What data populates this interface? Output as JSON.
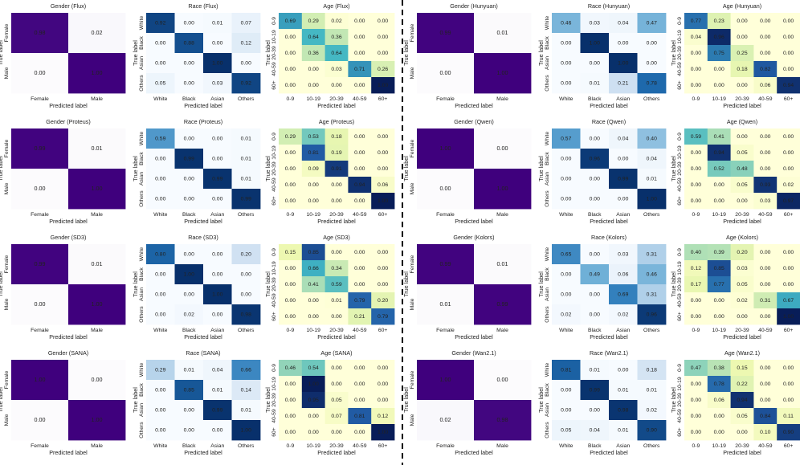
{
  "common": {
    "xlabel": "Predicted label",
    "ylabel": "True label",
    "gender_labels": [
      "Female",
      "Male"
    ],
    "race_labels": [
      "White",
      "Black",
      "Asian",
      "Others"
    ],
    "age_labels": [
      "0-9",
      "10-19",
      "20-39",
      "40-59",
      "60+"
    ]
  },
  "colors": {
    "gender": "purples",
    "race": "blues",
    "age": "yellow-green-blue"
  },
  "chart_data": [
    {
      "type": "heatmap",
      "title": "Gender (Flux)",
      "rows": [
        "Female",
        "Male"
      ],
      "cols": [
        "Female",
        "Male"
      ],
      "values": [
        [
          0.98,
          0.02
        ],
        [
          0.0,
          1.0
        ]
      ]
    },
    {
      "type": "heatmap",
      "title": "Race (Flux)",
      "rows": [
        "White",
        "Black",
        "Asian",
        "Others"
      ],
      "cols": [
        "White",
        "Black",
        "Asian",
        "Others"
      ],
      "values": [
        [
          0.92,
          0.0,
          0.01,
          0.07
        ],
        [
          0.0,
          0.88,
          0.0,
          0.12
        ],
        [
          0.0,
          0.0,
          1.0,
          0.0
        ],
        [
          0.05,
          0.0,
          0.03,
          0.92
        ]
      ]
    },
    {
      "type": "heatmap",
      "title": "Age (Flux)",
      "rows": [
        "0-9",
        "10-19",
        "20-39",
        "40-59",
        "60+"
      ],
      "cols": [
        "0-9",
        "10-19",
        "20-39",
        "40-59",
        "60+"
      ],
      "values": [
        [
          0.69,
          0.29,
          0.02,
          0.0,
          0.0
        ],
        [
          0.0,
          0.64,
          0.36,
          0.0,
          0.0
        ],
        [
          0.0,
          0.36,
          0.64,
          0.0,
          0.0
        ],
        [
          0.0,
          0.0,
          0.03,
          0.71,
          0.26
        ],
        [
          0.0,
          0.0,
          0.0,
          0.0,
          1.0
        ]
      ]
    },
    {
      "type": "heatmap",
      "title": "Gender (Hunyuan)",
      "rows": [
        "Female",
        "Male"
      ],
      "cols": [
        "Female",
        "Male"
      ],
      "values": [
        [
          0.99,
          0.01
        ],
        [
          0.0,
          1.0
        ]
      ]
    },
    {
      "type": "heatmap",
      "title": "Race (Hunyuan)",
      "rows": [
        "White",
        "Black",
        "Asian",
        "Others"
      ],
      "cols": [
        "White",
        "Black",
        "Asian",
        "Others"
      ],
      "values": [
        [
          0.46,
          0.03,
          0.04,
          0.47
        ],
        [
          0.0,
          1.0,
          0.0,
          0.0
        ],
        [
          0.0,
          0.0,
          1.0,
          0.0
        ],
        [
          0.0,
          0.01,
          0.21,
          0.78
        ]
      ]
    },
    {
      "type": "heatmap",
      "title": "Age (Hunyuan)",
      "rows": [
        "0-9",
        "10-19",
        "20-39",
        "40-59",
        "60+"
      ],
      "cols": [
        "0-9",
        "10-19",
        "20-39",
        "40-59",
        "60+"
      ],
      "values": [
        [
          0.77,
          0.23,
          0.0,
          0.0,
          0.0
        ],
        [
          0.04,
          0.96,
          0.0,
          0.0,
          0.0
        ],
        [
          0.0,
          0.75,
          0.25,
          0.0,
          0.0
        ],
        [
          0.0,
          0.0,
          0.18,
          0.82,
          0.0
        ],
        [
          0.0,
          0.0,
          0.0,
          0.06,
          0.94
        ]
      ]
    },
    {
      "type": "heatmap",
      "title": "Gender (Proteus)",
      "rows": [
        "Female",
        "Male"
      ],
      "cols": [
        "Female",
        "Male"
      ],
      "values": [
        [
          0.99,
          0.01
        ],
        [
          0.0,
          1.0
        ]
      ]
    },
    {
      "type": "heatmap",
      "title": "Race (Proteus)",
      "rows": [
        "White",
        "Black",
        "Asian",
        "Others"
      ],
      "cols": [
        "White",
        "Black",
        "Asian",
        "Others"
      ],
      "values": [
        [
          0.59,
          0.0,
          0.0,
          0.01
        ],
        [
          0.0,
          0.99,
          0.0,
          0.01
        ],
        [
          0.0,
          0.0,
          0.99,
          0.01
        ],
        [
          0.0,
          0.0,
          0.0,
          0.99
        ]
      ]
    },
    {
      "type": "heatmap",
      "title": "Age (Proteus)",
      "rows": [
        "0-9",
        "10-19",
        "20-39",
        "40-59",
        "60+"
      ],
      "cols": [
        "0-9",
        "10-19",
        "20-39",
        "40-59",
        "60+"
      ],
      "values": [
        [
          0.29,
          0.53,
          0.18,
          0.0,
          0.0
        ],
        [
          0.0,
          0.81,
          0.19,
          0.0,
          0.0
        ],
        [
          0.0,
          0.09,
          0.91,
          0.0,
          0.0
        ],
        [
          0.0,
          0.0,
          0.0,
          0.94,
          0.06
        ],
        [
          0.0,
          0.0,
          0.0,
          0.0,
          1.0
        ]
      ]
    },
    {
      "type": "heatmap",
      "title": "Gender (Qwen)",
      "rows": [
        "Female",
        "Male"
      ],
      "cols": [
        "Female",
        "Male"
      ],
      "values": [
        [
          1.0,
          0.0
        ],
        [
          0.0,
          1.0
        ]
      ]
    },
    {
      "type": "heatmap",
      "title": "Race (Qwen)",
      "rows": [
        "White",
        "Black",
        "Asian",
        "Others"
      ],
      "cols": [
        "White",
        "Black",
        "Asian",
        "Others"
      ],
      "values": [
        [
          0.57,
          0.0,
          0.04,
          0.4
        ],
        [
          0.0,
          0.96,
          0.0,
          0.04
        ],
        [
          0.0,
          0.0,
          0.99,
          0.01
        ],
        [
          0.0,
          0.0,
          0.0,
          1.0
        ]
      ]
    },
    {
      "type": "heatmap",
      "title": "Age (Qwen)",
      "rows": [
        "0-9",
        "10-19",
        "20-39",
        "40-59",
        "60+"
      ],
      "cols": [
        "0-9",
        "10-19",
        "20-39",
        "40-59",
        "60+"
      ],
      "values": [
        [
          0.59,
          0.41,
          0.0,
          0.0,
          0.0
        ],
        [
          0.0,
          0.94,
          0.05,
          0.0,
          0.0
        ],
        [
          0.0,
          0.52,
          0.48,
          0.0,
          0.0
        ],
        [
          0.0,
          0.0,
          0.05,
          0.93,
          0.02
        ],
        [
          0.0,
          0.0,
          0.0,
          0.03,
          0.97
        ]
      ]
    },
    {
      "type": "heatmap",
      "title": "Gender (SD3)",
      "rows": [
        "Female",
        "Male"
      ],
      "cols": [
        "Female",
        "Male"
      ],
      "values": [
        [
          0.99,
          0.01
        ],
        [
          0.0,
          1.0
        ]
      ]
    },
    {
      "type": "heatmap",
      "title": "Race (SD3)",
      "rows": [
        "White",
        "Black",
        "Asian",
        "Others"
      ],
      "cols": [
        "White",
        "Black",
        "Asian",
        "Others"
      ],
      "values": [
        [
          0.8,
          0.0,
          0.0,
          0.2
        ],
        [
          0.0,
          1.0,
          0.0,
          0.0
        ],
        [
          0.0,
          0.0,
          1.0,
          0.0
        ],
        [
          0.0,
          0.02,
          0.0,
          0.98
        ]
      ]
    },
    {
      "type": "heatmap",
      "title": "Age (SD3)",
      "rows": [
        "0-9",
        "10-19",
        "20-39",
        "40-59",
        "60+"
      ],
      "cols": [
        "0-9",
        "10-19",
        "20-39",
        "40-59",
        "60+"
      ],
      "values": [
        [
          0.15,
          0.85,
          0.0,
          0.0,
          0.0
        ],
        [
          0.0,
          0.66,
          0.34,
          0.0,
          0.0
        ],
        [
          0.0,
          0.41,
          0.59,
          0.0,
          0.0
        ],
        [
          0.0,
          0.0,
          0.01,
          0.79,
          0.2
        ],
        [
          0.0,
          0.0,
          0.0,
          0.21,
          0.79
        ]
      ]
    },
    {
      "type": "heatmap",
      "title": "Gender (Kolors)",
      "rows": [
        "Female",
        "Male"
      ],
      "cols": [
        "Female",
        "Male"
      ],
      "values": [
        [
          0.99,
          0.01
        ],
        [
          0.01,
          0.99
        ]
      ]
    },
    {
      "type": "heatmap",
      "title": "Race (Kolors)",
      "rows": [
        "White",
        "Black",
        "Asian",
        "Others"
      ],
      "cols": [
        "White",
        "Black",
        "Asian",
        "Others"
      ],
      "values": [
        [
          0.65,
          0.0,
          0.03,
          0.31
        ],
        [
          0.0,
          0.49,
          0.06,
          0.46
        ],
        [
          0.0,
          0.0,
          0.69,
          0.31
        ],
        [
          0.02,
          0.0,
          0.02,
          0.96
        ]
      ]
    },
    {
      "type": "heatmap",
      "title": "Age (Kolors)",
      "rows": [
        "0-9",
        "10-19",
        "20-39",
        "40-59",
        "60+"
      ],
      "cols": [
        "0-9",
        "10-19",
        "20-39",
        "40-59",
        "60+"
      ],
      "values": [
        [
          0.4,
          0.39,
          0.2,
          0.0,
          0.0
        ],
        [
          0.12,
          0.85,
          0.03,
          0.0,
          0.0
        ],
        [
          0.17,
          0.77,
          0.05,
          0.0,
          0.0
        ],
        [
          0.0,
          0.0,
          0.02,
          0.31,
          0.67
        ],
        [
          0.0,
          0.0,
          0.0,
          0.0,
          1.0
        ]
      ]
    },
    {
      "type": "heatmap",
      "title": "Gender (SANA)",
      "rows": [
        "Female",
        "Male"
      ],
      "cols": [
        "Female",
        "Male"
      ],
      "values": [
        [
          1.0,
          0.0
        ],
        [
          0.0,
          1.0
        ]
      ]
    },
    {
      "type": "heatmap",
      "title": "Race (SANA)",
      "rows": [
        "White",
        "Black",
        "Asian",
        "Others"
      ],
      "cols": [
        "White",
        "Black",
        "Asian",
        "Others"
      ],
      "values": [
        [
          0.29,
          0.01,
          0.04,
          0.66
        ],
        [
          0.0,
          0.85,
          0.01,
          0.14
        ],
        [
          0.0,
          0.0,
          0.99,
          0.01
        ],
        [
          0.0,
          0.0,
          0.0,
          1.0
        ]
      ]
    },
    {
      "type": "heatmap",
      "title": "Age (SANA)",
      "rows": [
        "0-9",
        "10-19",
        "20-39",
        "40-59",
        "60+"
      ],
      "cols": [
        "0-9",
        "10-19",
        "20-39",
        "40-59",
        "60+"
      ],
      "values": [
        [
          0.46,
          0.54,
          0.0,
          0.0,
          0.0
        ],
        [
          0.0,
          1.0,
          0.0,
          0.0,
          0.0
        ],
        [
          0.0,
          0.95,
          0.05,
          0.0,
          0.0
        ],
        [
          0.0,
          0.0,
          0.07,
          0.81,
          0.12
        ],
        [
          0.0,
          0.0,
          0.0,
          0.0,
          1.0
        ]
      ]
    },
    {
      "type": "heatmap",
      "title": "Gender (Wan2.1)",
      "rows": [
        "Female",
        "Male"
      ],
      "cols": [
        "Female",
        "Male"
      ],
      "values": [
        [
          1.0,
          0.0
        ],
        [
          0.02,
          0.98
        ]
      ]
    },
    {
      "type": "heatmap",
      "title": "Race (Wan2.1)",
      "rows": [
        "White",
        "Black",
        "Asian",
        "Others"
      ],
      "cols": [
        "White",
        "Black",
        "Asian",
        "Others"
      ],
      "values": [
        [
          0.81,
          0.01,
          0.0,
          0.18
        ],
        [
          0.0,
          0.99,
          0.01,
          0.01
        ],
        [
          0.0,
          0.0,
          0.98,
          0.02
        ],
        [
          0.05,
          0.04,
          0.01,
          0.9
        ]
      ]
    },
    {
      "type": "heatmap",
      "title": "Age (Wan2.1)",
      "rows": [
        "0-9",
        "10-19",
        "20-39",
        "40-59",
        "60+"
      ],
      "cols": [
        "0-9",
        "10-19",
        "20-39",
        "40-59",
        "60+"
      ],
      "values": [
        [
          0.47,
          0.38,
          0.15,
          0.0,
          0.0
        ],
        [
          0.0,
          0.78,
          0.22,
          0.0,
          0.0
        ],
        [
          0.0,
          0.06,
          0.94,
          0.0,
          0.0
        ],
        [
          0.0,
          0.0,
          0.05,
          0.84,
          0.11
        ],
        [
          0.0,
          0.0,
          0.0,
          0.1,
          0.9
        ]
      ]
    }
  ]
}
